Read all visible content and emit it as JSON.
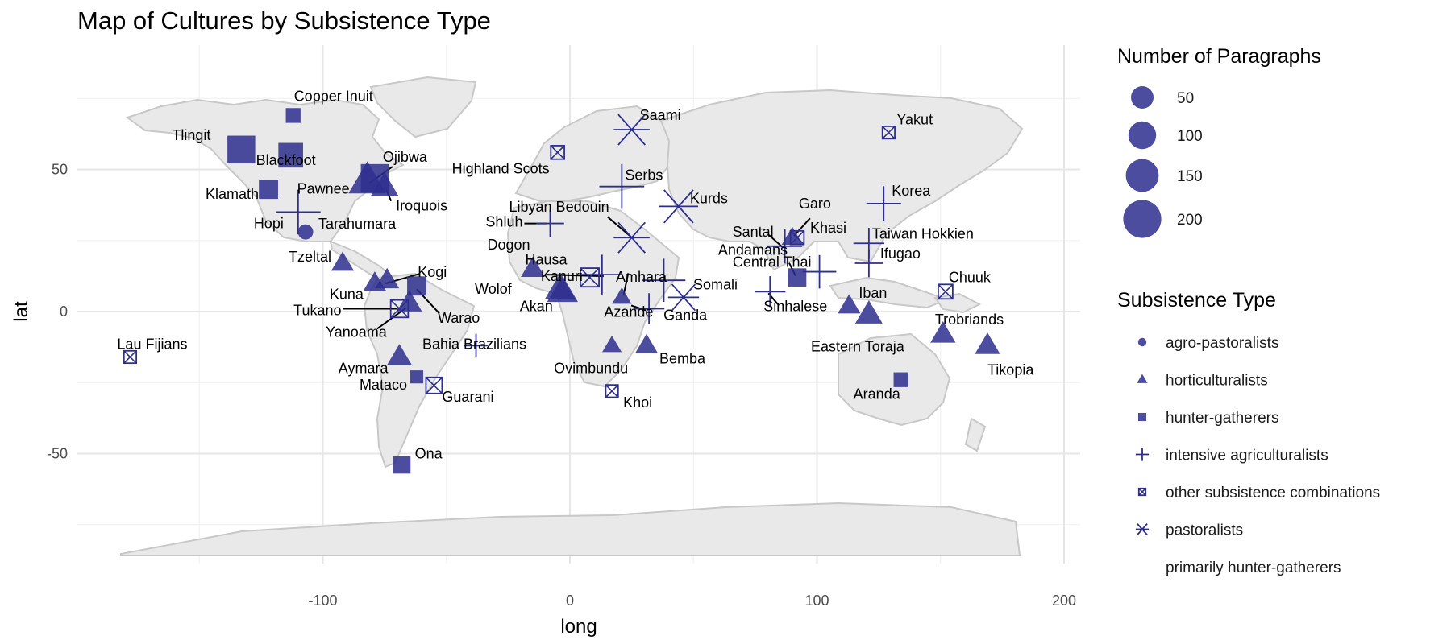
{
  "chart_data": {
    "type": "scatter",
    "title": "Map of Cultures by Subsistence Type",
    "xlabel": "long",
    "ylabel": "lat",
    "xlim": [
      -185,
      210
    ],
    "ylim": [
      -90,
      90
    ],
    "x_ticks": [
      -100,
      0,
      100,
      200
    ],
    "y_ticks": [
      -50,
      0,
      50
    ],
    "grid": true,
    "background": "world map (gray land polygons)",
    "marker_color": "#2e2e8f",
    "land_color": "#e9e9e9",
    "size_legend": {
      "title": "Number of Paragraphs",
      "values": [
        50,
        100,
        150,
        200
      ],
      "labels": [
        "50",
        "100",
        "150",
        "200"
      ]
    },
    "shape_legend": {
      "title": "Subsistence Type",
      "items": [
        {
          "label": "agro-pastoralists",
          "shape": "circle"
        },
        {
          "label": "horticulturalists",
          "shape": "triangle"
        },
        {
          "label": "hunter-gatherers",
          "shape": "square"
        },
        {
          "label": "intensive agriculturalists",
          "shape": "plus"
        },
        {
          "label": "other subsistence combinations",
          "shape": "boxx"
        },
        {
          "label": "pastoralists",
          "shape": "star"
        },
        {
          "label": "primarily hunter-gatherers",
          "shape": "none"
        }
      ]
    },
    "points": [
      {
        "label": "Copper Inuit",
        "long": -112,
        "lat": 69,
        "type": "hunter-gatherers",
        "size": 20
      },
      {
        "label": "Tlingit",
        "long": -133,
        "lat": 57,
        "type": "hunter-gatherers",
        "size": 200
      },
      {
        "label": "Blackfoot",
        "long": -113,
        "lat": 55,
        "type": "hunter-gatherers",
        "size": 140
      },
      {
        "label": "Klamath",
        "long": -122,
        "lat": 43,
        "type": "hunter-gatherers",
        "size": 60
      },
      {
        "label": "Hopi",
        "long": -110,
        "lat": 35,
        "type": "intensive agriculturalists",
        "size": 200
      },
      {
        "label": "Tarahumara",
        "long": -107,
        "lat": 28,
        "type": "agro-pastoralists",
        "size": 20
      },
      {
        "label": "Pawnee",
        "long": -82,
        "lat": 46,
        "type": "horticulturalists",
        "size": 220
      },
      {
        "label": "Ojibwa",
        "long": -79,
        "lat": 47,
        "type": "hunter-gatherers",
        "size": 200
      },
      {
        "label": "Iroquois",
        "long": -75,
        "lat": 44,
        "type": "horticulturalists",
        "size": 80
      },
      {
        "label": "Tzeltal",
        "long": -92,
        "lat": 17,
        "type": "horticulturalists",
        "size": 40
      },
      {
        "label": "Kogi",
        "long": -74,
        "lat": 11,
        "type": "horticulturalists",
        "size": 50
      },
      {
        "label": "Kuna",
        "long": -79,
        "lat": 10,
        "type": "horticulturalists",
        "size": 40
      },
      {
        "label": "Warao",
        "long": -62,
        "lat": 9,
        "type": "hunter-gatherers",
        "size": 60
      },
      {
        "label": "Tukano",
        "long": -69,
        "lat": 1,
        "type": "other subsistence combinations",
        "size": 80
      },
      {
        "label": "Yanoama",
        "long": -65,
        "lat": 3,
        "type": "horticulturalists",
        "size": 60
      },
      {
        "label": "Aymara",
        "long": -69,
        "lat": -16,
        "type": "horticulturalists",
        "size": 60
      },
      {
        "label": "Mataco",
        "long": -62,
        "lat": -23,
        "type": "hunter-gatherers",
        "size": 10
      },
      {
        "label": "Guarani",
        "long": -55,
        "lat": -26,
        "type": "other subsistence combinations",
        "size": 60
      },
      {
        "label": "Bahia Brazilians",
        "long": -38,
        "lat": -12,
        "type": "intensive agriculturalists",
        "size": 20
      },
      {
        "label": "Ona",
        "long": -68,
        "lat": -54,
        "type": "hunter-gatherers",
        "size": 40
      },
      {
        "label": "Lau Fijians",
        "long": -178,
        "lat": -16,
        "type": "other subsistence combinations",
        "size": 20
      },
      {
        "label": "Highland Scots",
        "long": -5,
        "lat": 56,
        "type": "other subsistence combinations",
        "size": 30
      },
      {
        "label": "Saami",
        "long": 25,
        "lat": 64,
        "type": "pastoralists",
        "size": 100
      },
      {
        "label": "Serbs",
        "long": 21,
        "lat": 44,
        "type": "intensive agriculturalists",
        "size": 200
      },
      {
        "label": "Libyan Bedouin",
        "long": 25,
        "lat": 26,
        "type": "pastoralists",
        "size": 100
      },
      {
        "label": "Kurds",
        "long": 44,
        "lat": 37,
        "type": "pastoralists",
        "size": 130
      },
      {
        "label": "Shluh",
        "long": -8,
        "lat": 31,
        "type": "intensive agriculturalists",
        "size": 40
      },
      {
        "label": "Amhara",
        "long": 38,
        "lat": 11,
        "type": "intensive agriculturalists",
        "size": 180
      },
      {
        "label": "Somali",
        "long": 46,
        "lat": 5,
        "type": "pastoralists",
        "size": 60
      },
      {
        "label": "Dogon",
        "long": -15,
        "lat": 15,
        "type": "horticulturalists",
        "size": 50
      },
      {
        "label": "Hausa",
        "long": 8,
        "lat": 12,
        "type": "other subsistence combinations",
        "size": 100
      },
      {
        "label": "Wolof",
        "long": -4,
        "lat": 8,
        "type": "horticulturalists",
        "size": 110
      },
      {
        "label": "Akan",
        "long": -3,
        "lat": 7,
        "type": "horticulturalists",
        "size": 120
      },
      {
        "label": "Kanuri",
        "long": 13,
        "lat": 13,
        "type": "intensive agriculturalists",
        "size": 140
      },
      {
        "label": "Azande",
        "long": 21,
        "lat": 5,
        "type": "horticulturalists",
        "size": 20
      },
      {
        "label": "Ganda",
        "long": 32,
        "lat": 1,
        "type": "intensive agriculturalists",
        "size": 60
      },
      {
        "label": "Bemba",
        "long": 31,
        "lat": -12,
        "type": "horticulturalists",
        "size": 40
      },
      {
        "label": "Ovimbundu",
        "long": 17,
        "lat": -12,
        "type": "horticulturalists",
        "size": 20
      },
      {
        "label": "Khoi",
        "long": 17,
        "lat": -28,
        "type": "other subsistence combinations",
        "size": 20
      },
      {
        "label": "Yakut",
        "long": 129,
        "lat": 63,
        "type": "other subsistence combinations",
        "size": 20
      },
      {
        "label": "Korea",
        "long": 127,
        "lat": 38,
        "type": "intensive agriculturalists",
        "size": 90
      },
      {
        "label": "Garo",
        "long": 90,
        "lat": 26,
        "type": "horticulturalists",
        "size": 30
      },
      {
        "label": "Khasi",
        "long": 92,
        "lat": 26,
        "type": "other subsistence combinations",
        "size": 30
      },
      {
        "label": "Santal",
        "long": 87,
        "lat": 23,
        "type": "intensive agriculturalists",
        "size": 90
      },
      {
        "label": "Taiwan Hokkien",
        "long": 121,
        "lat": 24,
        "type": "intensive agriculturalists",
        "size": 60
      },
      {
        "label": "Andamans",
        "long": 92,
        "lat": 12,
        "type": "hunter-gatherers",
        "size": 50
      },
      {
        "label": "Central Thai",
        "long": 101,
        "lat": 14,
        "type": "intensive agriculturalists",
        "size": 80
      },
      {
        "label": "Ifugao",
        "long": 121,
        "lat": 17,
        "type": "intensive agriculturalists",
        "size": 40
      },
      {
        "label": "Sinhalese",
        "long": 81,
        "lat": 7,
        "type": "intensive agriculturalists",
        "size": 60
      },
      {
        "label": "Iban",
        "long": 113,
        "lat": 2,
        "type": "horticulturalists",
        "size": 40
      },
      {
        "label": "Eastern Toraja",
        "long": 121,
        "lat": -1,
        "type": "horticulturalists",
        "size": 80
      },
      {
        "label": "Chuuk",
        "long": 152,
        "lat": 7,
        "type": "other subsistence combinations",
        "size": 40
      },
      {
        "label": "Trobriands",
        "long": 151,
        "lat": -8,
        "type": "horticulturalists",
        "size": 60
      },
      {
        "label": "Tikopia",
        "long": 169,
        "lat": -12,
        "type": "horticulturalists",
        "size": 60
      },
      {
        "label": "Aranda",
        "long": 134,
        "lat": -24,
        "type": "hunter-gatherers",
        "size": 20
      }
    ]
  }
}
